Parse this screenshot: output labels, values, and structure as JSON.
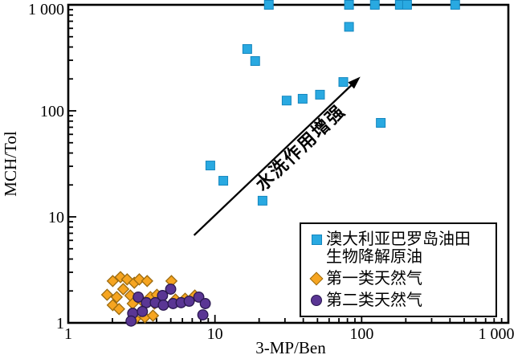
{
  "chart_data": {
    "type": "scatter",
    "title": "",
    "xlabel": "3-MP/Ben",
    "ylabel": "MCH/Tol",
    "x_scale": "log",
    "y_scale": "log",
    "xlim": [
      1,
      1000
    ],
    "ylim": [
      1,
      1000
    ],
    "x_ticks": [
      1,
      10,
      100,
      1000
    ],
    "x_tick_labels": [
      "1",
      "10",
      "100",
      "1 000"
    ],
    "y_ticks": [
      1,
      10,
      100,
      1000
    ],
    "y_tick_labels": [
      "1",
      "10",
      "100",
      "1 000"
    ],
    "grid": false,
    "legend_position": "lower right",
    "series": [
      {
        "name": "澳大利亚巴罗岛油田生物降解原油",
        "marker": "square",
        "color": "#29a9e1",
        "edge_color": "#1486be",
        "points": [
          [
            23.3,
            1000
          ],
          [
            82,
            1000
          ],
          [
            123,
            1000
          ],
          [
            182,
            1000
          ],
          [
            204,
            1000
          ],
          [
            434,
            1000
          ],
          [
            82,
            620
          ],
          [
            16.6,
            383
          ],
          [
            18.8,
            295
          ],
          [
            75,
            187
          ],
          [
            52,
            142
          ],
          [
            30.8,
            125
          ],
          [
            39.6,
            130
          ],
          [
            135,
            77
          ],
          [
            9.3,
            30.5
          ],
          [
            11.4,
            21.9
          ],
          [
            21.1,
            14.2
          ]
        ]
      },
      {
        "name": "第一类天然气",
        "marker": "diamond",
        "color": "#f6a521",
        "edge_color": "#9c6b10",
        "points": [
          [
            2.01,
            2.48
          ],
          [
            2.27,
            2.7
          ],
          [
            2.52,
            2.57
          ],
          [
            2.82,
            2.39
          ],
          [
            3.05,
            2.57
          ],
          [
            3.45,
            2.48
          ],
          [
            1.84,
            1.84
          ],
          [
            2.14,
            1.75
          ],
          [
            2.37,
            2.08
          ],
          [
            2.65,
            1.81
          ],
          [
            2.01,
            1.47
          ],
          [
            2.22,
            1.35
          ],
          [
            2.75,
            1.52
          ],
          [
            3.2,
            1.6
          ],
          [
            3.63,
            1.75
          ],
          [
            4.02,
            1.84
          ],
          [
            5.05,
            2.48
          ],
          [
            3.87,
            1.52
          ],
          [
            5.38,
            1.66
          ],
          [
            6.26,
            1.69
          ],
          [
            7.29,
            1.81
          ],
          [
            2.86,
            1.09
          ],
          [
            3.33,
            1.13
          ],
          [
            3.78,
            1.17
          ]
        ]
      },
      {
        "name": "第二类天然气",
        "marker": "circle",
        "color": "#5a3694",
        "edge_color": "#2a1850",
        "points": [
          [
            3.0,
            1.75
          ],
          [
            3.41,
            1.55
          ],
          [
            3.92,
            1.55
          ],
          [
            4.39,
            1.81
          ],
          [
            4.99,
            2.08
          ],
          [
            4.45,
            1.47
          ],
          [
            5.18,
            1.52
          ],
          [
            5.88,
            1.55
          ],
          [
            6.67,
            1.6
          ],
          [
            7.76,
            1.75
          ],
          [
            8.59,
            1.52
          ],
          [
            2.75,
            1.23
          ],
          [
            3.2,
            1.28
          ],
          [
            8.27,
            1.19
          ],
          [
            2.68,
            1.04
          ]
        ]
      }
    ],
    "annotation": {
      "text": "水洗作用增强",
      "arrow_from": [
        7.2,
        6.7
      ],
      "arrow_to": [
        98,
        210
      ]
    }
  },
  "legend": {
    "items": [
      {
        "line1": "澳大利亚巴罗岛油田",
        "line2": "生物降解原油"
      },
      {
        "line1": "第一类天然气"
      },
      {
        "line1": "第二类天然气"
      }
    ]
  }
}
